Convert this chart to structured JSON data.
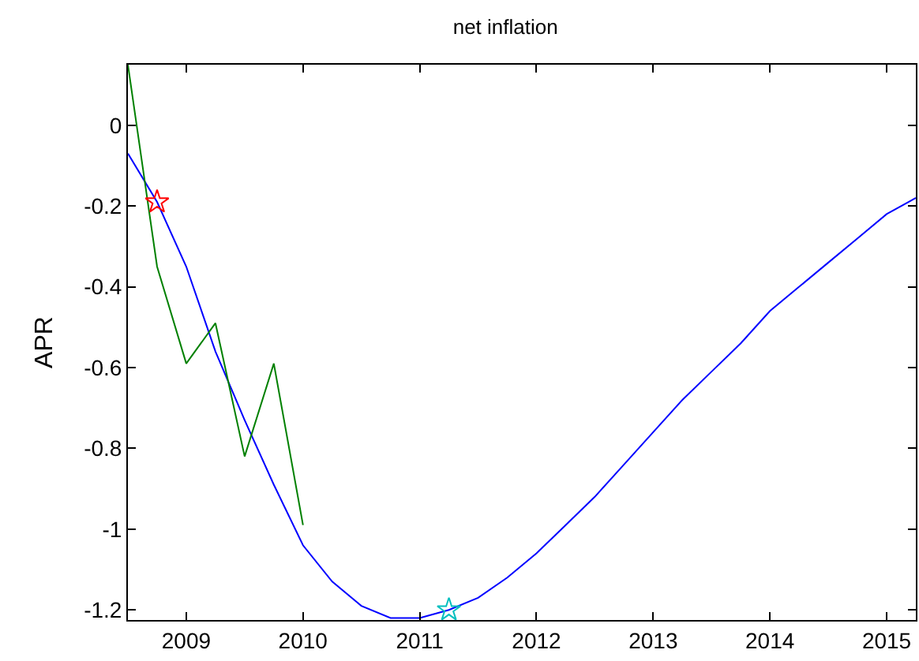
{
  "chart_data": {
    "type": "line",
    "title": "net inflation",
    "ylabel": "APR",
    "xlim": [
      2008.5,
      2015.25
    ],
    "xticks": [
      2009,
      2010,
      2011,
      2012,
      2013,
      2014,
      2015
    ],
    "ylim": [
      -1.225,
      0.15
    ],
    "yticks": [
      0,
      -0.2,
      -0.4,
      -0.6,
      -0.8,
      -1,
      -1.2
    ],
    "marker": "none",
    "line_style": "solid",
    "series": [
      {
        "color": "#0000ff",
        "x": [
          2008.5,
          2008.75,
          2009,
          2009.25,
          2009.5,
          2009.75,
          2010,
          2010.25,
          2010.5,
          2010.75,
          2011,
          2011.25,
          2011.5,
          2011.75,
          2012,
          2012.25,
          2012.5,
          2012.75,
          2013,
          2013.25,
          2013.5,
          2013.75,
          2014,
          2014.25,
          2014.5,
          2014.75,
          2015,
          2015.25
        ],
        "values": [
          -0.07,
          -0.19,
          -0.35,
          -0.56,
          -0.73,
          -0.89,
          -1.04,
          -1.13,
          -1.19,
          -1.22,
          -1.22,
          -1.2,
          -1.17,
          -1.12,
          -1.06,
          -0.99,
          -0.92,
          -0.84,
          -0.76,
          -0.68,
          -0.61,
          -0.54,
          -0.46,
          -0.4,
          -0.34,
          -0.28,
          -0.22,
          -0.18
        ]
      },
      {
        "color": "#008000",
        "x": [
          2008.5,
          2008.75,
          2009,
          2009.25,
          2009.5,
          2009.75,
          2010
        ],
        "values": [
          0.15,
          -0.35,
          -0.59,
          -0.49,
          -0.82,
          -0.59,
          -0.99
        ]
      },
      {
        "type": "scatter",
        "marker": "star",
        "color": "#ff0000",
        "x": [
          2008.75
        ],
        "values": [
          -0.19
        ]
      },
      {
        "type": "scatter",
        "marker": "star",
        "color": "#00bfbf",
        "x": [
          2011.25
        ],
        "values": [
          -1.2
        ]
      }
    ]
  }
}
